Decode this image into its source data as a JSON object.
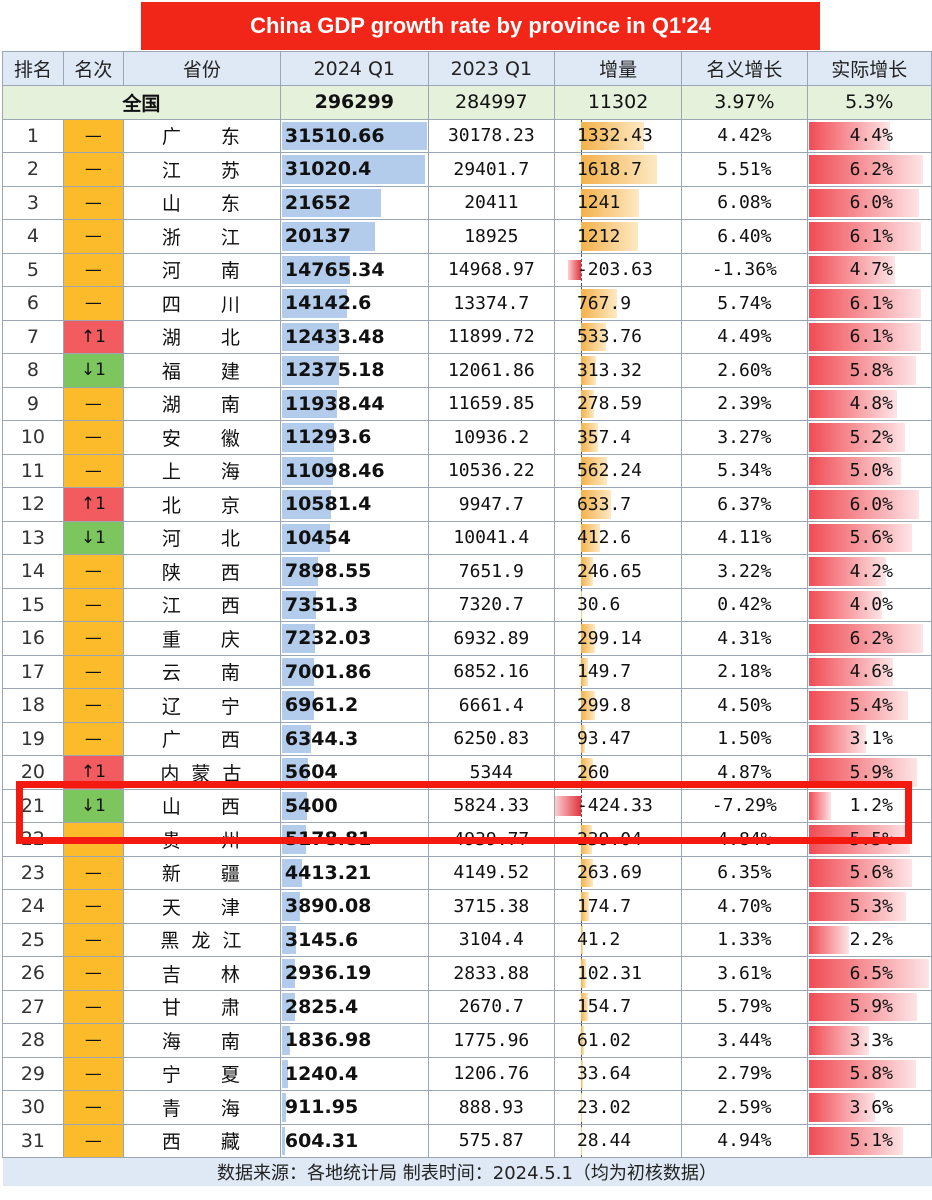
{
  "title": "China GDP growth rate by province in Q1'24",
  "headers": [
    "排名",
    "名次",
    "省份",
    "2024 Q1",
    "2023 Q1",
    "增量",
    "名义增长",
    "实际增长"
  ],
  "national": {
    "label": "全国",
    "q1_2024": "296299",
    "q1_2023": "284997",
    "increase": "11302",
    "nominal": "3.97%",
    "real": "5.3%"
  },
  "footer": "数据来源：各地统计局    制表时间：2024.5.1（均为初核数据）",
  "colors": {
    "title_bg": "#f22618",
    "same": "#fbbb2b",
    "up": "#f25c61",
    "down": "#7cc65d",
    "bar_2024": "#b4cceb",
    "bar_increase": "#f4b14a",
    "bar_real": "#f04c54",
    "highlight": "#f41a10"
  },
  "highlighted_rank": "21",
  "chart_data": {
    "type": "table",
    "title": "China GDP growth rate by province in Q1'24",
    "rows": [
      {
        "rank": "1",
        "change": "—",
        "dir": "same",
        "province": "广东",
        "q1_2024": "31510.66",
        "q1_2023": "30178.23",
        "increase": "1332.43",
        "nominal": "4.42%",
        "real": "4.4%"
      },
      {
        "rank": "2",
        "change": "—",
        "dir": "same",
        "province": "江苏",
        "q1_2024": "31020.4",
        "q1_2023": "29401.7",
        "increase": "1618.7",
        "nominal": "5.51%",
        "real": "6.2%"
      },
      {
        "rank": "3",
        "change": "—",
        "dir": "same",
        "province": "山东",
        "q1_2024": "21652",
        "q1_2023": "20411",
        "increase": "1241",
        "nominal": "6.08%",
        "real": "6.0%"
      },
      {
        "rank": "4",
        "change": "—",
        "dir": "same",
        "province": "浙江",
        "q1_2024": "20137",
        "q1_2023": "18925",
        "increase": "1212",
        "nominal": "6.40%",
        "real": "6.1%"
      },
      {
        "rank": "5",
        "change": "—",
        "dir": "same",
        "province": "河南",
        "q1_2024": "14765.34",
        "q1_2023": "14968.97",
        "increase": "-203.63",
        "nominal": "-1.36%",
        "real": "4.7%"
      },
      {
        "rank": "6",
        "change": "—",
        "dir": "same",
        "province": "四川",
        "q1_2024": "14142.6",
        "q1_2023": "13374.7",
        "increase": "767.9",
        "nominal": "5.74%",
        "real": "6.1%"
      },
      {
        "rank": "7",
        "change": "↑1",
        "dir": "up",
        "province": "湖北",
        "q1_2024": "12433.48",
        "q1_2023": "11899.72",
        "increase": "533.76",
        "nominal": "4.49%",
        "real": "6.1%"
      },
      {
        "rank": "8",
        "change": "↓1",
        "dir": "down",
        "province": "福建",
        "q1_2024": "12375.18",
        "q1_2023": "12061.86",
        "increase": "313.32",
        "nominal": "2.60%",
        "real": "5.8%"
      },
      {
        "rank": "9",
        "change": "—",
        "dir": "same",
        "province": "湖南",
        "q1_2024": "11938.44",
        "q1_2023": "11659.85",
        "increase": "278.59",
        "nominal": "2.39%",
        "real": "4.8%"
      },
      {
        "rank": "10",
        "change": "—",
        "dir": "same",
        "province": "安徽",
        "q1_2024": "11293.6",
        "q1_2023": "10936.2",
        "increase": "357.4",
        "nominal": "3.27%",
        "real": "5.2%"
      },
      {
        "rank": "11",
        "change": "—",
        "dir": "same",
        "province": "上海",
        "q1_2024": "11098.46",
        "q1_2023": "10536.22",
        "increase": "562.24",
        "nominal": "5.34%",
        "real": "5.0%"
      },
      {
        "rank": "12",
        "change": "↑1",
        "dir": "up",
        "province": "北京",
        "q1_2024": "10581.4",
        "q1_2023": "9947.7",
        "increase": "633.7",
        "nominal": "6.37%",
        "real": "6.0%"
      },
      {
        "rank": "13",
        "change": "↓1",
        "dir": "down",
        "province": "河北",
        "q1_2024": "10454",
        "q1_2023": "10041.4",
        "increase": "412.6",
        "nominal": "4.11%",
        "real": "5.6%"
      },
      {
        "rank": "14",
        "change": "—",
        "dir": "same",
        "province": "陕西",
        "q1_2024": "7898.55",
        "q1_2023": "7651.9",
        "increase": "246.65",
        "nominal": "3.22%",
        "real": "4.2%"
      },
      {
        "rank": "15",
        "change": "—",
        "dir": "same",
        "province": "江西",
        "q1_2024": "7351.3",
        "q1_2023": "7320.7",
        "increase": "30.6",
        "nominal": "0.42%",
        "real": "4.0%"
      },
      {
        "rank": "16",
        "change": "—",
        "dir": "same",
        "province": "重庆",
        "q1_2024": "7232.03",
        "q1_2023": "6932.89",
        "increase": "299.14",
        "nominal": "4.31%",
        "real": "6.2%"
      },
      {
        "rank": "17",
        "change": "—",
        "dir": "same",
        "province": "云南",
        "q1_2024": "7001.86",
        "q1_2023": "6852.16",
        "increase": "149.7",
        "nominal": "2.18%",
        "real": "4.6%"
      },
      {
        "rank": "18",
        "change": "—",
        "dir": "same",
        "province": "辽宁",
        "q1_2024": "6961.2",
        "q1_2023": "6661.4",
        "increase": "299.8",
        "nominal": "4.50%",
        "real": "5.4%"
      },
      {
        "rank": "19",
        "change": "—",
        "dir": "same",
        "province": "广西",
        "q1_2024": "6344.3",
        "q1_2023": "6250.83",
        "increase": "93.47",
        "nominal": "1.50%",
        "real": "3.1%"
      },
      {
        "rank": "20",
        "change": "↑1",
        "dir": "up",
        "province": "内蒙古",
        "q1_2024": "5604",
        "q1_2023": "5344",
        "increase": "260",
        "nominal": "4.87%",
        "real": "5.9%"
      },
      {
        "rank": "21",
        "change": "↓1",
        "dir": "down",
        "province": "山西",
        "q1_2024": "5400",
        "q1_2023": "5824.33",
        "increase": "-424.33",
        "nominal": "-7.29%",
        "real": "1.2%"
      },
      {
        "rank": "22",
        "change": "—",
        "dir": "same",
        "province": "贵州",
        "q1_2024": "5178.81",
        "q1_2023": "4939.77",
        "increase": "239.04",
        "nominal": "4.84%",
        "real": "5.5%"
      },
      {
        "rank": "23",
        "change": "—",
        "dir": "same",
        "province": "新疆",
        "q1_2024": "4413.21",
        "q1_2023": "4149.52",
        "increase": "263.69",
        "nominal": "6.35%",
        "real": "5.6%"
      },
      {
        "rank": "24",
        "change": "—",
        "dir": "same",
        "province": "天津",
        "q1_2024": "3890.08",
        "q1_2023": "3715.38",
        "increase": "174.7",
        "nominal": "4.70%",
        "real": "5.3%"
      },
      {
        "rank": "25",
        "change": "—",
        "dir": "same",
        "province": "黑龙江",
        "q1_2024": "3145.6",
        "q1_2023": "3104.4",
        "increase": "41.2",
        "nominal": "1.33%",
        "real": "2.2%"
      },
      {
        "rank": "26",
        "change": "—",
        "dir": "same",
        "province": "吉林",
        "q1_2024": "2936.19",
        "q1_2023": "2833.88",
        "increase": "102.31",
        "nominal": "3.61%",
        "real": "6.5%"
      },
      {
        "rank": "27",
        "change": "—",
        "dir": "same",
        "province": "甘肃",
        "q1_2024": "2825.4",
        "q1_2023": "2670.7",
        "increase": "154.7",
        "nominal": "5.79%",
        "real": "5.9%"
      },
      {
        "rank": "28",
        "change": "—",
        "dir": "same",
        "province": "海南",
        "q1_2024": "1836.98",
        "q1_2023": "1775.96",
        "increase": "61.02",
        "nominal": "3.44%",
        "real": "3.3%"
      },
      {
        "rank": "29",
        "change": "—",
        "dir": "same",
        "province": "宁夏",
        "q1_2024": "1240.4",
        "q1_2023": "1206.76",
        "increase": "33.64",
        "nominal": "2.79%",
        "real": "5.8%"
      },
      {
        "rank": "30",
        "change": "—",
        "dir": "same",
        "province": "青海",
        "q1_2024": "911.95",
        "q1_2023": "888.93",
        "increase": "23.02",
        "nominal": "2.59%",
        "real": "3.6%"
      },
      {
        "rank": "31",
        "change": "—",
        "dir": "same",
        "province": "西藏",
        "q1_2024": "604.31",
        "q1_2023": "575.87",
        "increase": "28.44",
        "nominal": "4.94%",
        "real": "5.1%"
      }
    ]
  }
}
